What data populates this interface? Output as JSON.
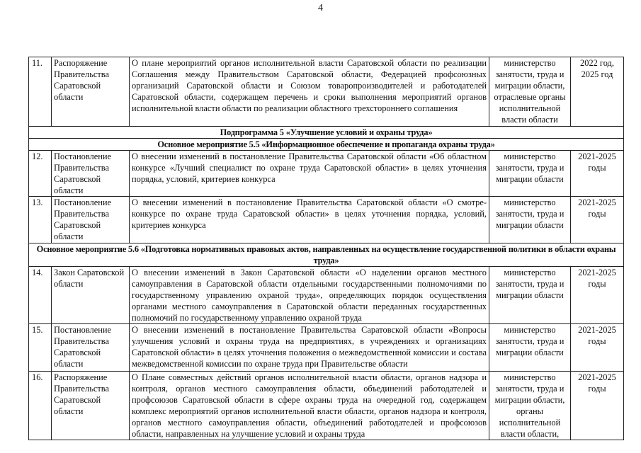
{
  "page_number": "4",
  "rows": [
    {
      "kind": "item",
      "num": "11.",
      "type": "Распоряжение Правительства Саратовской области",
      "desc": "О плане мероприятий органов исполнительной власти Саратовской области по реализации Соглашения между Правительством Саратовской области, Федерацией профсоюзных организаций Саратовской области и Союзом товаропроизводителей и работодателей Саратовской области, содержащем перечень и сроки выполнения мероприятий органов исполнительной власти области по реализации областного трехстороннего соглашения",
      "resp": "министерство занятости, труда и миграции области, отраслевые органы исполнительной власти области",
      "year": "2022 год, 2025 год"
    },
    {
      "kind": "header",
      "text": "Подпрограмма 5 «Улучшение условий и охраны труда»"
    },
    {
      "kind": "header",
      "text": "Основное мероприятие 5.5 «Информационное обеспечение и пропаганда охраны труда»"
    },
    {
      "kind": "item",
      "num": "12.",
      "type": "Постановление Правительства Саратовской области",
      "desc": "О внесении изменений в постановление Правительства Саратовской области «Об областном конкурсе «Лучший специалист по охране труда Саратовской области» в целях уточнения порядка, условий, критериев конкурса",
      "resp": "министерство занятости, труда и миграции области",
      "year": "2021-2025 годы"
    },
    {
      "kind": "item",
      "num": "13.",
      "type": "Постановление Правительства Саратовской области",
      "desc": "О внесении изменений в постановление Правительства Саратовской области «О смотре-конкурсе по охране труда Саратовской области» в целях уточнения порядка, условий, критериев конкурса",
      "resp": "министерство занятости, труда и миграции области",
      "year": "2021-2025 годы"
    },
    {
      "kind": "header",
      "text": "Основное мероприятие 5.6 «Подготовка нормативных правовых актов, направленных на осуществление государственной политики в области охраны труда»"
    },
    {
      "kind": "item",
      "num": "14.",
      "type": "Закон Саратовской области",
      "desc": "О внесении изменений в Закон Саратовской области «О наделении органов местного самоуправления в Саратовской области отдельными государственными полномочиями по государственному управлению охраной труда», определяющих порядок осуществления органами местного самоуправления в Саратовской области переданных государственных полномочий по государственному управлению охраной труда",
      "resp": "министерство занятости, труда и миграции области",
      "year": "2021-2025 годы"
    },
    {
      "kind": "item",
      "num": "15.",
      "type": "Постановление Правительства Саратовской области",
      "desc": "О внесении изменений в постановление Правительства Саратовской области «Вопросы улучшения условий и охраны труда на предприятиях, в учреждениях и организациях Саратовской области» в целях уточнения положения о межведомственной комиссии и состава межведомственной комиссии по охране труда при Правительстве области",
      "resp": "министерство занятости, труда и миграции области",
      "year": "2021-2025 годы"
    },
    {
      "kind": "item",
      "num": "16.",
      "type": "Распоряжение Правительства Саратовской области",
      "desc": "О Плане совместных действий органов исполнительной власти области, органов надзора и контроля, органов местного самоуправления области, объединений работодателей и профсоюзов Саратовской области в сфере охраны труда на очередной год, содержащем комплекс мероприятий органов исполнительной власти области, органов надзора и контроля, органов местного самоуправления области, объединений работодателей и профсоюзов области, направленных на улучшение условий и охраны труда",
      "resp": "министерство занятости, труда и миграции области, органы исполнительной власти области,",
      "year": "2021-2025 годы"
    }
  ]
}
